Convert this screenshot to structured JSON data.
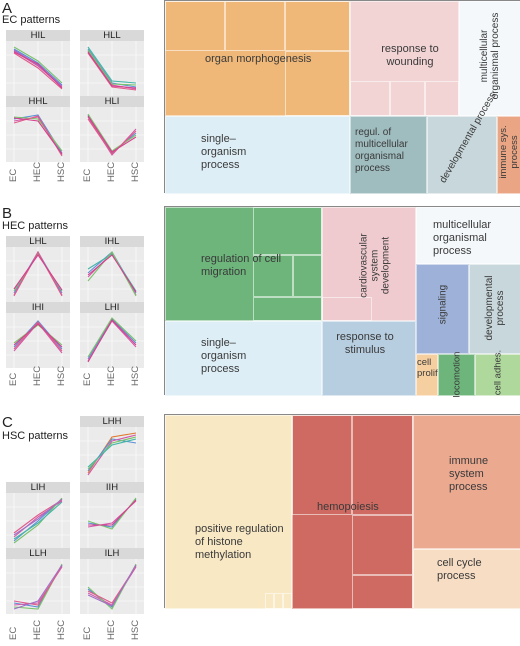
{
  "panels": [
    {
      "letter": "A",
      "title": "EC patterns",
      "facets": [
        "HIL",
        "HLL",
        "HHL",
        "HLI"
      ],
      "x_ticks": [
        "EC",
        "HEC",
        "HSC"
      ],
      "terms": [
        "organ morphogenesis",
        "response to wounding",
        "multicellular organismal process",
        "single–organism process",
        "regul. of multicellular organismal process",
        "developmental process",
        "immune sys. process"
      ]
    },
    {
      "letter": "B",
      "title": "HEC patterns",
      "facets": [
        "LHL",
        "IHL",
        "IHI",
        "LHI"
      ],
      "x_ticks": [
        "EC",
        "HEC",
        "HSC"
      ],
      "terms": [
        "regulation of cell migration",
        "cardiovascular system development",
        "multicellular organismal process",
        "single–organism process",
        "response to stimulus",
        "signaling",
        "developmental process",
        "cell prolif.",
        "locomotion",
        "cell adhes."
      ]
    },
    {
      "letter": "C",
      "title": "HSC patterns",
      "facets": [
        "LHH",
        "LIH",
        "IIH",
        "LLH",
        "ILH"
      ],
      "x_ticks": [
        "EC",
        "HEC",
        "HSC"
      ],
      "terms": [
        "positive regulation of histone methylation",
        "hemopoiesis",
        "immune system process",
        "cell cycle process"
      ]
    }
  ],
  "colors": {
    "orange": "#efb878",
    "pink_light": "#f2d4d4",
    "blue_light": "#ddeef6",
    "teal": "#9fbcbf",
    "grey_blue": "#c8d7dc",
    "salmon": "#e9a584",
    "green": "#6db57b",
    "pink": "#efcbcf",
    "blue_mid": "#b7cde0",
    "purple_blue": "#9eb1d8",
    "light_orange": "#f6cfa0",
    "light_green": "#aed89c",
    "cream": "#f8e8c4",
    "red": "#cf6a62",
    "peach": "#eba990",
    "peach_light": "#f7ddc4"
  }
}
